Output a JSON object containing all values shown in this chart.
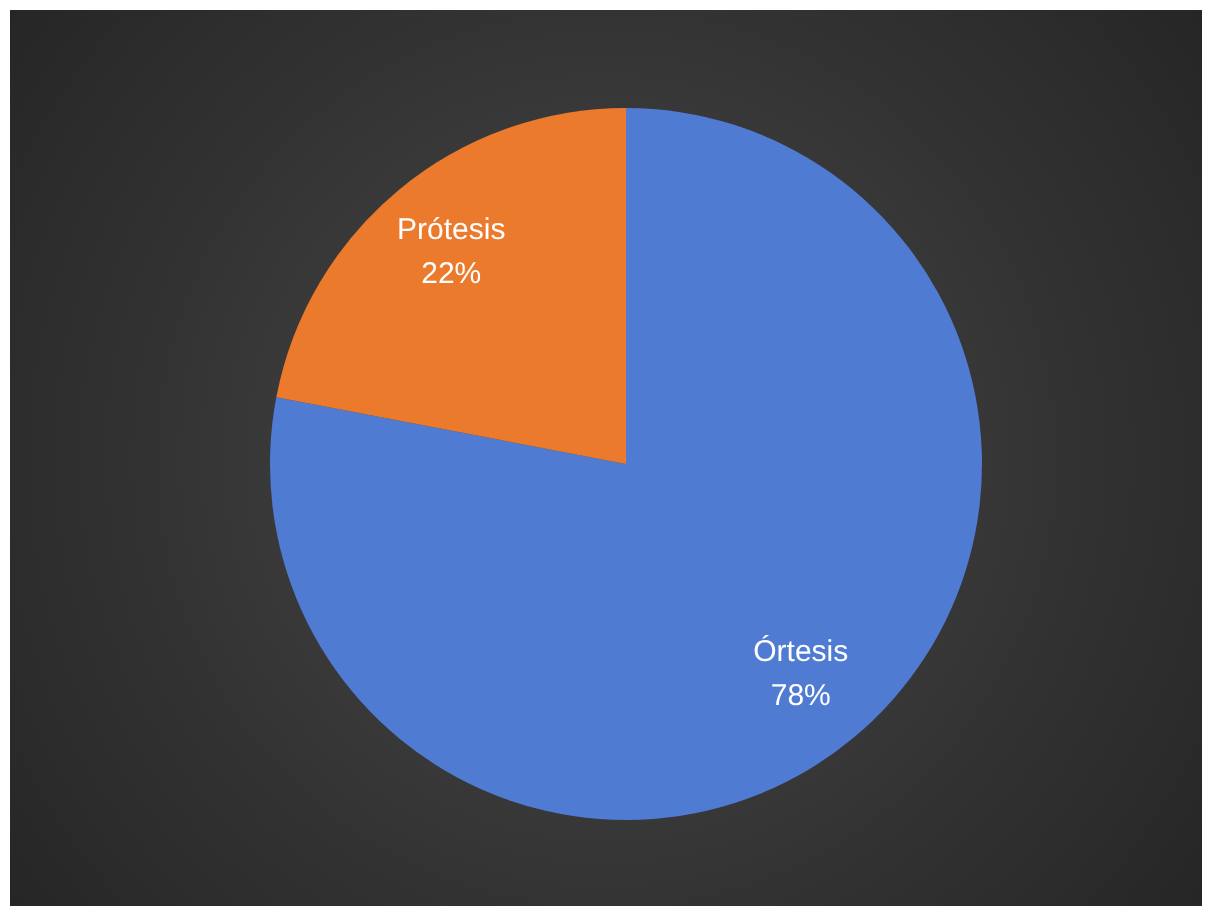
{
  "chart_data": {
    "type": "pie",
    "categories": [
      "Órtesis",
      "Prótesis"
    ],
    "values": [
      78,
      22
    ],
    "colors": [
      "#4f7bd3",
      "#ec7a2c"
    ],
    "value_labels": [
      "78%",
      "22%"
    ]
  }
}
